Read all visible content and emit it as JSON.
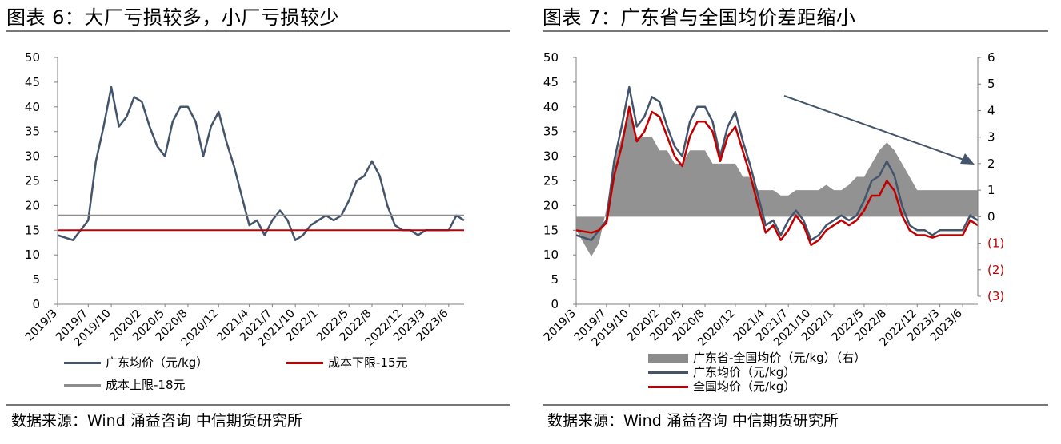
{
  "left": {
    "title": "图表 6：大厂亏损较多，小厂亏损较少",
    "source": "数据来源：Wind 涌益咨询 中信期货研究所",
    "chart_data": {
      "type": "line",
      "x_ticks": [
        "2019/3",
        "2019/7",
        "2019/10",
        "2020/2",
        "2020/5",
        "2020/8",
        "2020/12",
        "2021/4",
        "2021/7",
        "2021/10",
        "2022/1",
        "2022/5",
        "2022/8",
        "2022/12",
        "2023/3",
        "2023/6"
      ],
      "x": [
        "2019/3",
        "2019/5",
        "2019/6",
        "2019/7",
        "2019/8",
        "2019/9",
        "2019/10",
        "2019/11",
        "2019/12",
        "2020/1",
        "2020/2",
        "2020/3",
        "2020/4",
        "2020/5",
        "2020/6",
        "2020/7",
        "2020/8",
        "2020/9",
        "2020/10",
        "2020/11",
        "2020/12",
        "2021/1",
        "2021/2",
        "2021/3",
        "2021/4",
        "2021/5",
        "2021/6",
        "2021/7",
        "2021/8",
        "2021/9",
        "2021/10",
        "2021/11",
        "2021/12",
        "2022/1",
        "2022/2",
        "2022/3",
        "2022/4",
        "2022/5",
        "2022/6",
        "2022/7",
        "2022/8",
        "2022/9",
        "2022/10",
        "2022/11",
        "2022/12",
        "2023/1",
        "2023/2",
        "2023/3",
        "2023/4",
        "2023/5",
        "2023/6",
        "2023/7",
        "2023/8"
      ],
      "ylim": [
        0,
        50
      ],
      "y_ticks": [
        0,
        5,
        10,
        15,
        20,
        25,
        30,
        35,
        40,
        45,
        50
      ],
      "series": [
        {
          "name": "广东均价（元/kg）",
          "color": "#44546a",
          "values": [
            14,
            13,
            15,
            17,
            29,
            36,
            44,
            36,
            38,
            42,
            41,
            36,
            32,
            30,
            37,
            40,
            40,
            37,
            30,
            36,
            39,
            33,
            28,
            22,
            16,
            17,
            14,
            17,
            19,
            17,
            13,
            14,
            16,
            17,
            18,
            17,
            18,
            21,
            25,
            26,
            29,
            26,
            20,
            16,
            15,
            15,
            14,
            15,
            15,
            15,
            15,
            18,
            17
          ]
        },
        {
          "name": "成本下限-15元",
          "color": "#c00000",
          "constant": 15
        },
        {
          "name": "成本上限-18元",
          "color": "#8c8c8c",
          "constant": 18
        }
      ]
    },
    "legend": [
      "广东均价（元/kg）",
      "成本下限-15元",
      "成本上限-18元"
    ]
  },
  "right": {
    "title": "图表 7：广东省与全国均价差距缩小",
    "source": "数据来源：Wind 涌益咨询 中信期货研究所",
    "chart_data": {
      "type": "line",
      "x_ticks": [
        "2019/3",
        "2019/7",
        "2019/10",
        "2020/2",
        "2020/5",
        "2020/8",
        "2020/12",
        "2021/4",
        "2021/7",
        "2021/10",
        "2022/1",
        "2022/5",
        "2022/8",
        "2022/12",
        "2023/3",
        "2023/6"
      ],
      "x": [
        "2019/3",
        "2019/5",
        "2019/6",
        "2019/7",
        "2019/8",
        "2019/9",
        "2019/10",
        "2019/11",
        "2019/12",
        "2020/1",
        "2020/2",
        "2020/3",
        "2020/4",
        "2020/5",
        "2020/6",
        "2020/7",
        "2020/8",
        "2020/9",
        "2020/10",
        "2020/11",
        "2020/12",
        "2021/1",
        "2021/2",
        "2021/3",
        "2021/4",
        "2021/5",
        "2021/6",
        "2021/7",
        "2021/8",
        "2021/9",
        "2021/10",
        "2021/11",
        "2021/12",
        "2022/1",
        "2022/2",
        "2022/3",
        "2022/4",
        "2022/5",
        "2022/6",
        "2022/7",
        "2022/8",
        "2022/9",
        "2022/10",
        "2022/11",
        "2022/12",
        "2023/1",
        "2023/2",
        "2023/3",
        "2023/4",
        "2023/5",
        "2023/6",
        "2023/7",
        "2023/8"
      ],
      "ylim": [
        0,
        50
      ],
      "y_ticks": [
        0,
        5,
        10,
        15,
        20,
        25,
        30,
        35,
        40,
        45,
        50
      ],
      "y2lim": [
        -3,
        6
      ],
      "y2_ticks": [
        "(3)",
        "(2)",
        "(1)",
        "0",
        "1",
        "2",
        "3",
        "4",
        "5",
        "6"
      ],
      "series": [
        {
          "name": "广东省-全国均价（元/kg）（右）",
          "type": "area",
          "axis": "right",
          "color": "#8c8c8c",
          "values": [
            -0.5,
            -1.5,
            -1,
            0.3,
            2,
            3,
            4,
            3,
            3,
            3,
            2.5,
            2.5,
            2,
            2,
            2.5,
            2.5,
            2.5,
            2,
            2,
            2,
            2,
            1.5,
            1.5,
            1,
            1,
            1,
            0.8,
            0.8,
            1,
            1,
            1,
            1,
            1.2,
            1,
            1,
            1.2,
            1.5,
            1.5,
            2,
            2.5,
            2.8,
            2.5,
            2,
            1.5,
            1,
            1,
            1,
            1,
            1,
            1,
            1,
            1,
            1
          ]
        },
        {
          "name": "广东均价（元/kg）",
          "axis": "left",
          "color": "#44546a",
          "values": [
            14,
            13,
            15,
            17,
            29,
            36,
            44,
            36,
            38,
            42,
            41,
            36,
            32,
            30,
            37,
            40,
            40,
            37,
            30,
            36,
            39,
            33,
            28,
            22,
            16,
            17,
            14,
            17,
            19,
            17,
            13,
            14,
            16,
            17,
            18,
            17,
            18,
            21,
            25,
            26,
            29,
            26,
            20,
            16,
            15,
            15,
            14,
            15,
            15,
            15,
            15,
            18,
            17
          ]
        },
        {
          "name": "全国均价（元/kg）",
          "axis": "left",
          "color": "#c00000",
          "values": [
            15,
            14.5,
            15,
            16.5,
            26,
            32,
            40,
            33,
            35,
            39,
            38,
            34,
            30,
            28,
            34,
            37,
            37,
            35,
            29,
            34,
            36,
            31,
            26,
            20,
            14.5,
            16,
            13,
            15,
            18,
            16,
            12,
            13,
            15,
            16,
            17,
            16,
            17,
            19,
            22,
            22,
            25,
            23,
            18,
            15,
            14,
            14,
            13.5,
            14,
            14,
            14,
            14,
            17,
            16
          ]
        }
      ]
    },
    "legend": [
      "广东省-全国均价（元/kg）（右）",
      "广东均价（元/kg）",
      "全国均价（元/kg）"
    ]
  }
}
